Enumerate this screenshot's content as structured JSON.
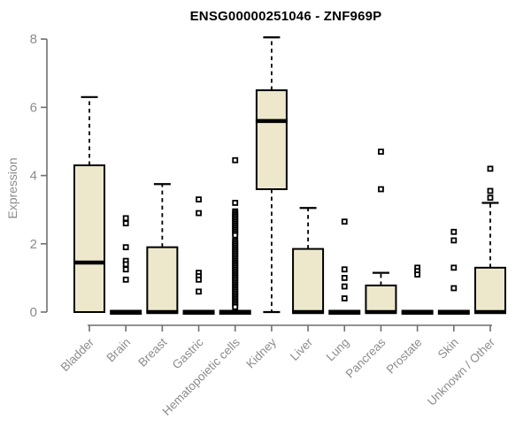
{
  "title": "ENSG00000251046 - ZNF969P",
  "colors": {
    "box_fill": "#EDE8CC",
    "box_border": "#000000",
    "median": "#000000",
    "whisker": "#000000",
    "outlier_stroke": "#000000",
    "outlier_fill": "#FFFFFF",
    "axis_line": "#6F6F6F",
    "axis_text": "#8C8C8C",
    "title_color": "#000000",
    "background": "#FFFFFF"
  },
  "chart_data": {
    "type": "boxplot",
    "title": "ENSG00000251046 - ZNF969P",
    "xlabel": "",
    "ylabel": "Expression",
    "ylim": [
      0,
      8.1
    ],
    "yticks": [
      0,
      2,
      4,
      6,
      8
    ],
    "grid": false,
    "legend": false,
    "categories": [
      "Bladder",
      "Brain",
      "Breast",
      "Gastric",
      "Hematopoietic cells",
      "Kidney",
      "Liver",
      "Lung",
      "Pancreas",
      "Prostate",
      "Skin",
      "Unknown / Other"
    ],
    "boxes": [
      {
        "name": "Bladder",
        "whisker_low": 0,
        "q1": 0,
        "median": 1.45,
        "q3": 4.3,
        "whisker_high": 6.3,
        "outliers": []
      },
      {
        "name": "Brain",
        "whisker_low": 0,
        "q1": 0,
        "median": 0,
        "q3": 0,
        "whisker_high": 0,
        "outliers": [
          2.75,
          2.6,
          1.9,
          1.5,
          1.4,
          1.25,
          0.95
        ]
      },
      {
        "name": "Breast",
        "whisker_low": 0,
        "q1": 0,
        "median": 0,
        "q3": 1.9,
        "whisker_high": 3.75,
        "outliers": []
      },
      {
        "name": "Gastric",
        "whisker_low": 0,
        "q1": 0,
        "median": 0,
        "q3": 0,
        "whisker_high": 0,
        "outliers": [
          3.3,
          2.9,
          1.15,
          1.05,
          0.95,
          0.6
        ]
      },
      {
        "name": "Hematopoietic cells",
        "whisker_low": 0,
        "q1": 0,
        "median": 0,
        "q3": 0,
        "whisker_high": 0,
        "outliers": [
          4.45,
          3.2,
          2.95,
          2.9,
          2.85,
          2.8,
          2.75,
          2.7,
          2.65,
          2.6,
          2.55,
          2.5,
          2.45,
          2.4,
          2.35,
          2.3,
          2.25,
          2.1,
          2.05,
          2.0,
          1.95,
          1.9,
          1.85,
          1.8,
          1.75,
          1.7,
          1.65,
          1.6,
          1.55,
          1.5,
          1.45,
          1.4,
          1.35,
          1.3,
          1.25,
          1.2,
          1.15,
          1.1,
          1.05,
          1.0,
          0.95,
          0.9,
          0.85,
          0.8,
          0.75,
          0.7,
          0.65,
          0.6,
          0.55,
          0.5,
          0.45,
          0.4,
          0.35,
          0.3,
          0.25,
          0.2,
          0.15
        ]
      },
      {
        "name": "Kidney",
        "whisker_low": 0,
        "q1": 3.6,
        "median": 5.6,
        "q3": 6.5,
        "whisker_high": 8.05,
        "outliers": []
      },
      {
        "name": "Liver",
        "whisker_low": 0,
        "q1": 0,
        "median": 0,
        "q3": 1.85,
        "whisker_high": 3.05,
        "outliers": []
      },
      {
        "name": "Lung",
        "whisker_low": 0,
        "q1": 0,
        "median": 0,
        "q3": 0,
        "whisker_high": 0,
        "outliers": [
          2.65,
          1.25,
          1.0,
          0.75,
          0.4
        ]
      },
      {
        "name": "Pancreas",
        "whisker_low": 0,
        "q1": 0,
        "median": 0,
        "q3": 0.78,
        "whisker_high": 1.15,
        "outliers": [
          4.7,
          3.6
        ]
      },
      {
        "name": "Prostate",
        "whisker_low": 0,
        "q1": 0,
        "median": 0,
        "q3": 0,
        "whisker_high": 0,
        "outliers": [
          1.3,
          1.2,
          1.1
        ]
      },
      {
        "name": "Skin",
        "whisker_low": 0,
        "q1": 0,
        "median": 0,
        "q3": 0,
        "whisker_high": 0,
        "outliers": [
          2.35,
          2.1,
          1.3,
          0.7
        ]
      },
      {
        "name": "Unknown / Other",
        "whisker_low": 0,
        "q1": 0,
        "median": 0,
        "q3": 1.3,
        "whisker_high": 3.2,
        "outliers": [
          4.2,
          3.55,
          3.35
        ]
      }
    ]
  }
}
